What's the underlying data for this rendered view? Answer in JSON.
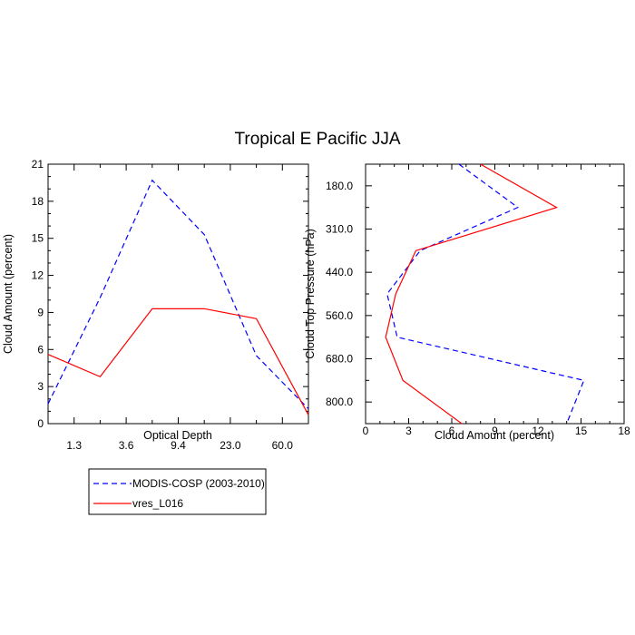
{
  "title": "Tropical E Pacific JJA",
  "legend": {
    "placement": "below-left",
    "entries": [
      {
        "label": "MODIS-COSP (2003-2010)",
        "color": "#0000ff",
        "dash": "dashed"
      },
      {
        "label": "vres_L016",
        "color": "#ff0000",
        "dash": "solid"
      }
    ]
  },
  "chart_data": [
    {
      "type": "line",
      "xlabel": "Optical Depth",
      "ylabel": "Cloud Amount (percent)",
      "ylim": [
        0,
        21
      ],
      "yticks": [
        "0",
        "3",
        "6",
        "9",
        "12",
        "15",
        "18",
        "21"
      ],
      "xtick_labels": [
        "1.3",
        "3.6",
        "9.4",
        "23.0",
        "60.0"
      ],
      "x_positions": [
        0,
        1,
        2,
        3,
        4,
        5
      ],
      "series": [
        {
          "name": "MODIS-COSP (2003-2010)",
          "color": "#0000ff",
          "dash": "dashed",
          "values": [
            1.6,
            10.2,
            19.7,
            15.3,
            5.5,
            1.2
          ]
        },
        {
          "name": "vres_L016",
          "color": "#ff0000",
          "dash": "solid",
          "values": [
            5.6,
            3.8,
            9.3,
            9.3,
            8.5,
            0.7
          ]
        }
      ]
    },
    {
      "type": "line",
      "xlabel": "Cloud Amount (percent)",
      "ylabel": "Cloud Top Pressure (hPa)",
      "xlim": [
        0,
        18
      ],
      "xticks": [
        "0",
        "3",
        "6",
        "9",
        "12",
        "15",
        "18"
      ],
      "ytick_labels": [
        "180.0",
        "310.0",
        "440.0",
        "560.0",
        "680.0",
        "800.0"
      ],
      "y_positions": [
        0,
        1,
        2,
        3,
        4,
        5,
        6
      ],
      "series": [
        {
          "name": "MODIS-COSP (2003-2010)",
          "color": "#0000ff",
          "dash": "dashed",
          "values": [
            6.5,
            10.6,
            3.8,
            1.5,
            2.2,
            15.2,
            14.0
          ]
        },
        {
          "name": "vres_L016",
          "color": "#ff0000",
          "dash": "solid",
          "values": [
            8.0,
            13.3,
            3.5,
            2.1,
            1.4,
            2.6,
            6.7
          ]
        }
      ]
    }
  ]
}
